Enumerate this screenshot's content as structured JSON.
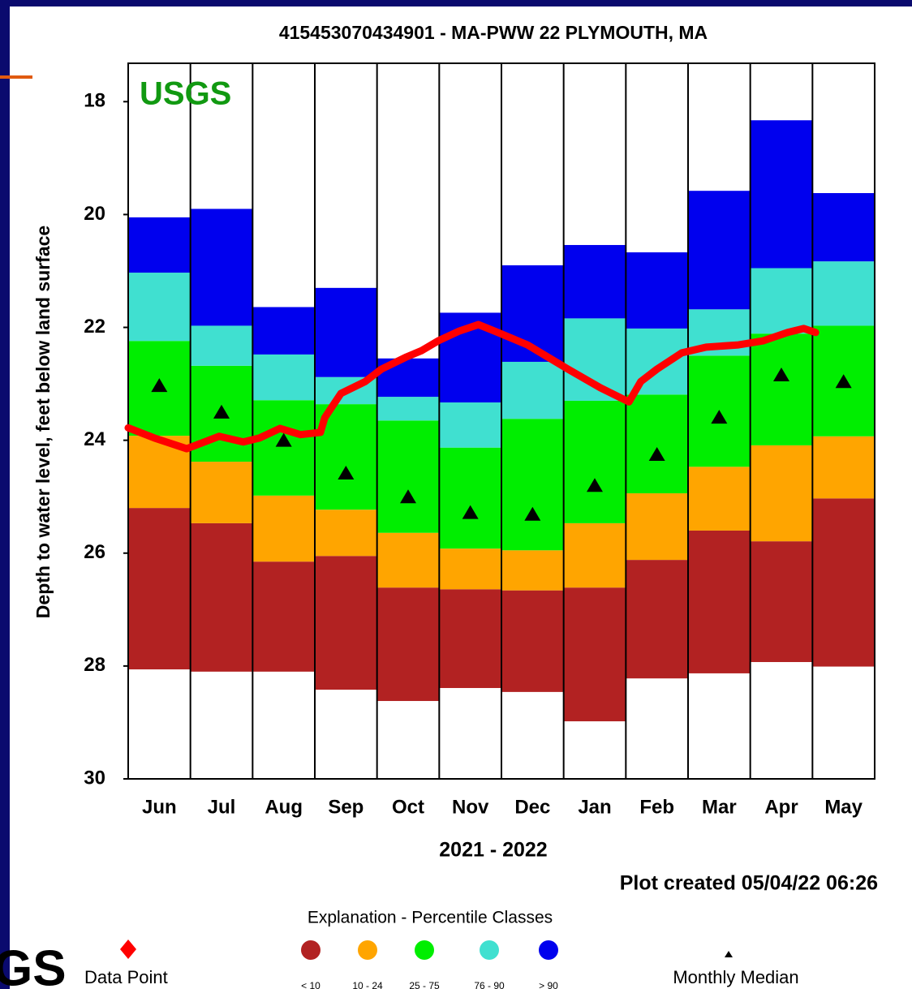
{
  "chart_data": {
    "type": "bar",
    "title": "415453070434901 - MA-PWW 22 PLYMOUTH, MA",
    "watermark": "USGS",
    "y_label": "Depth to water level, feet below land surface",
    "x_label": "2021 - 2022",
    "note": "Plot created 05/04/22 06:26",
    "legend_title": "Explanation - Percentile Classes",
    "logo": "GS",
    "invert_y": true,
    "ylim": [
      17.32,
      30
    ],
    "yticks": [
      18,
      20,
      22,
      24,
      26,
      28,
      30
    ],
    "xlim": [
      0,
      12
    ],
    "categories": [
      "Jun",
      "Jul",
      "Aug",
      "Sep",
      "Oct",
      "Nov",
      "Dec",
      "Jan",
      "Feb",
      "Mar",
      "Apr",
      "May"
    ],
    "series": [
      {
        "name": "< 10",
        "color": "#b22222",
        "start": [
          25.2,
          25.47,
          26.15,
          26.05,
          26.61,
          26.64,
          26.66,
          26.61,
          26.12,
          25.6,
          25.79,
          25.03
        ],
        "end": [
          28.06,
          28.1,
          28.1,
          28.42,
          28.62,
          28.39,
          28.46,
          28.98,
          28.22,
          28.13,
          27.93,
          28.01
        ]
      },
      {
        "name": "10 - 24",
        "color": "#ffa500",
        "start": [
          23.92,
          24.38,
          24.98,
          25.23,
          25.64,
          25.92,
          25.95,
          25.47,
          24.94,
          24.47,
          24.09,
          23.93
        ],
        "end": [
          25.2,
          25.47,
          26.15,
          26.05,
          26.61,
          26.64,
          26.66,
          26.61,
          26.12,
          25.6,
          25.79,
          25.03
        ]
      },
      {
        "name": "25 - 75",
        "color": "#00ee00",
        "start": [
          22.24,
          22.68,
          23.29,
          23.36,
          23.65,
          24.13,
          23.62,
          23.3,
          23.19,
          22.5,
          22.11,
          21.97
        ],
        "end": [
          23.92,
          24.38,
          24.98,
          25.23,
          25.64,
          25.92,
          25.95,
          25.47,
          24.94,
          24.47,
          24.09,
          23.93
        ]
      },
      {
        "name": "76 - 90",
        "color": "#40e0d0",
        "start": [
          21.03,
          21.97,
          22.48,
          22.88,
          23.23,
          23.33,
          22.61,
          21.84,
          22.02,
          21.68,
          20.95,
          20.83
        ],
        "end": [
          22.24,
          22.68,
          23.29,
          23.36,
          23.65,
          24.13,
          23.62,
          23.3,
          23.19,
          22.5,
          22.11,
          21.97
        ]
      },
      {
        "name": "> 90",
        "color": "#0000ee",
        "start": [
          20.05,
          19.9,
          21.64,
          21.3,
          22.55,
          21.74,
          20.9,
          20.54,
          20.67,
          19.58,
          18.33,
          19.62
        ],
        "end": [
          21.03,
          21.97,
          22.48,
          22.88,
          23.23,
          23.33,
          22.61,
          21.84,
          22.02,
          21.68,
          20.95,
          20.83
        ]
      }
    ],
    "medians": {
      "name": "Monthly Median",
      "color": "#000000",
      "values": [
        23.03,
        23.5,
        24.0,
        24.58,
        25.0,
        25.28,
        25.31,
        24.8,
        24.25,
        23.59,
        22.84,
        22.96
      ]
    },
    "line": {
      "name": "Data Point",
      "color": "#ff0000",
      "x": [
        0,
        0.42,
        0.94,
        1.46,
        1.85,
        2.11,
        2.44,
        2.77,
        3.09,
        3.16,
        3.42,
        3.81,
        4.07,
        4.46,
        4.72,
        4.98,
        5.31,
        5.63,
        5.9,
        6.42,
        7.07,
        7.59,
        8.05,
        8.24,
        8.5,
        8.9,
        9.29,
        9.81,
        10.2,
        10.6,
        10.86,
        11.05
      ],
      "values": [
        23.78,
        23.96,
        24.15,
        23.93,
        24.03,
        23.96,
        23.79,
        23.9,
        23.86,
        23.6,
        23.17,
        22.96,
        22.74,
        22.53,
        22.41,
        22.24,
        22.07,
        21.95,
        22.07,
        22.31,
        22.74,
        23.07,
        23.32,
        22.96,
        22.74,
        22.45,
        22.35,
        22.31,
        22.24,
        22.09,
        22.02,
        22.09
      ]
    }
  }
}
